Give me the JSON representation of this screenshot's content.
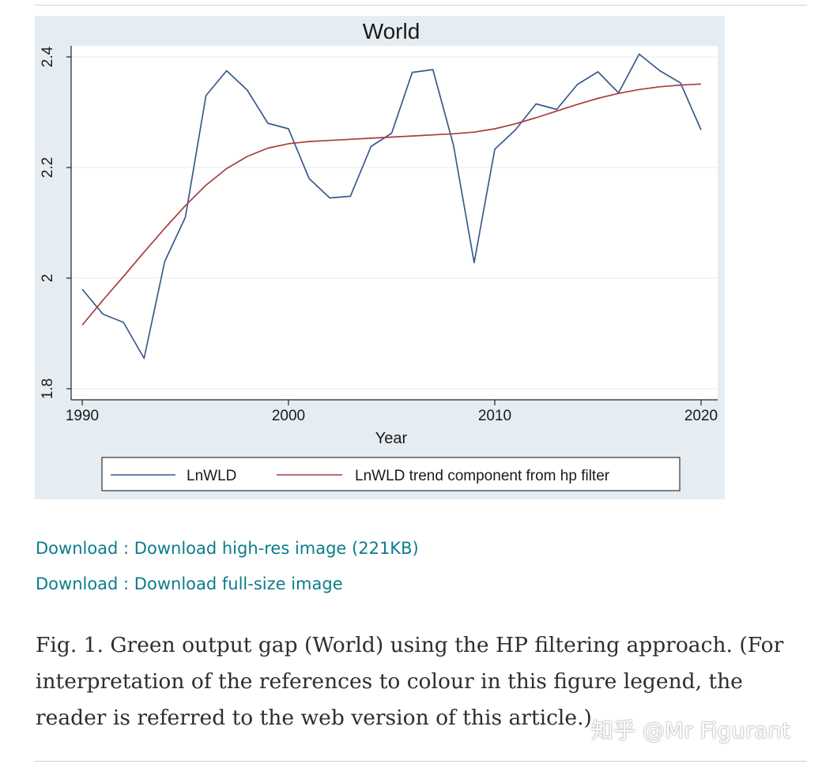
{
  "chart_data": {
    "type": "line",
    "title": "World",
    "xlabel": "Year",
    "ylabel": "",
    "xlim": [
      1990,
      2020
    ],
    "ylim": [
      1.78,
      2.42
    ],
    "xticks": [
      1990,
      2000,
      2010,
      2020
    ],
    "yticks": [
      1.8,
      2,
      2.2,
      2.4
    ],
    "ytick_labels": [
      "1.8",
      "2",
      "2.2",
      "2.4"
    ],
    "grid": true,
    "legend_position": "bottom",
    "x": [
      1990,
      1991,
      1992,
      1993,
      1994,
      1995,
      1996,
      1997,
      1998,
      1999,
      2000,
      2001,
      2002,
      2003,
      2004,
      2005,
      2006,
      2007,
      2008,
      2009,
      2010,
      2011,
      2012,
      2013,
      2014,
      2015,
      2016,
      2017,
      2018,
      2019,
      2020
    ],
    "series": [
      {
        "name": "LnWLD",
        "color": "#3a5a8c",
        "values": [
          1.98,
          1.935,
          1.92,
          1.855,
          2.03,
          2.11,
          2.33,
          2.375,
          2.34,
          2.28,
          2.27,
          2.18,
          2.145,
          2.148,
          2.238,
          2.262,
          2.372,
          2.377,
          2.24,
          2.028,
          2.233,
          2.268,
          2.315,
          2.305,
          2.35,
          2.373,
          2.335,
          2.405,
          2.375,
          2.353,
          2.268
        ]
      },
      {
        "name": "LnWLD trend component from hp filter",
        "color": "#a83c3c",
        "values": [
          1.915,
          1.96,
          2.003,
          2.047,
          2.09,
          2.131,
          2.168,
          2.198,
          2.22,
          2.235,
          2.243,
          2.247,
          2.249,
          2.251,
          2.253,
          2.255,
          2.257,
          2.259,
          2.261,
          2.264,
          2.27,
          2.279,
          2.29,
          2.302,
          2.314,
          2.325,
          2.334,
          2.341,
          2.346,
          2.349,
          2.351
        ]
      }
    ]
  },
  "links": {
    "high_res": "Download : Download high-res image (221KB)",
    "full_size": "Download : Download full-size image"
  },
  "caption": "Fig. 1. Green output gap (World) using the HP filtering approach. (For interpretation of the references to colour in this figure legend, the reader is referred to the web version of this article.)",
  "watermark": "知乎 @Mr Figurant",
  "colors": {
    "link": "#0c7d8a",
    "chart_bg": "#e6edf2"
  }
}
